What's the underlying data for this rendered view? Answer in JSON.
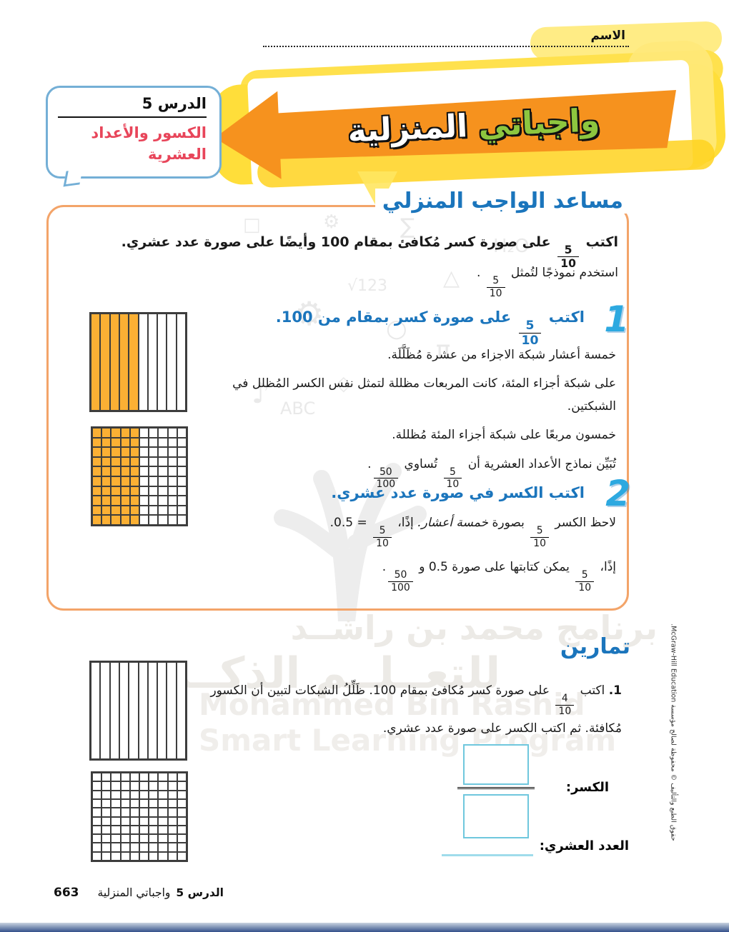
{
  "header": {
    "name_label": "الاسم"
  },
  "banner": {
    "word_green": "واجباتي",
    "word_white": "المنزلية"
  },
  "badge": {
    "lesson": "الدرس 5",
    "topic_line1": "الكسور والأعداد",
    "topic_line2": "العشرية"
  },
  "fractions": {
    "f510": {
      "num": "5",
      "den": "10"
    },
    "f50100": {
      "num": "50",
      "den": "100"
    },
    "f410": {
      "num": "4",
      "den": "10"
    }
  },
  "helper": {
    "title": "مساعد الواجب المنزلي",
    "intro_a": "اكتب",
    "intro_b": "على صورة كسر مُكافئ بمقام 100 وأيضًا على صورة عدد عشري.",
    "use_model_a": "استخدم نموذجًا لتُمثل",
    "use_model_b": ".",
    "step1": {
      "number": "1",
      "head_a": "اكتب",
      "head_b": "على صورة كسر بمقام من 100.",
      "p1": "خمسة أعشار شبكة الاجزاء من عشرة مُظَلَّلَة.",
      "p2": "على شبكة أجزاء المئة، كانت المربعات مظللة لتمثل نفس الكسر المُظلل في الشبكتين.",
      "p3": "خمسون مربعًا على شبكة أجزاء المئة مُظللة.",
      "p4_a": "تُبَيِّن نماذج الأعداد العشرية أن",
      "p4_b": "تُساوي",
      "p4_c": "."
    },
    "step2": {
      "number": "2",
      "head": "اكتب الكسر في صورة عدد عشري.",
      "p1_a": "لاحظ الكسر",
      "p1_b": "بصورة",
      "p1_italic": "خمسة أعشار.",
      "p1_c": "إذًا،",
      "p1_d": "= 0.5.",
      "p2_a": "إذًا،",
      "p2_b": "يمكن كتابتها على صورة 0.5 و",
      "p2_c": "."
    }
  },
  "exercises": {
    "title": "تمارين",
    "ex1_num": "1.",
    "ex1_a": "اكتب",
    "ex1_b": "على صورة كسر مُكافئ بمقام 100. ظَلِّلُ الشبكات لتبين أن الكسور مُكافئة. ثم اكتب الكسر على صورة عدد عشري.",
    "fraction_label": "الكسر:",
    "decimal_label": "العدد العشري:"
  },
  "grids": {
    "shade_color": "#FBB034",
    "model_tenths": {
      "rows": 1,
      "cols": 10,
      "shaded_cols": 5
    },
    "model_hundredths": {
      "rows": 10,
      "cols": 10,
      "shaded_cols": 5
    },
    "exercise_tenths": {
      "rows": 1,
      "cols": 10,
      "shaded_cols": 0
    },
    "exercise_hundredths": {
      "rows": 10,
      "cols": 10,
      "shaded_cols": 0
    }
  },
  "watermark": {
    "ar1": "برنامج محمد بن راشــد",
    "ar2": "للتعــلــم الذكــي",
    "en1": "Mohammed Bin Rashid",
    "en2": "Smart Learning Program"
  },
  "sidebar": {
    "copyright": "حقوق الطبع والتأليف © محفوظة لصالح مؤسسة McGraw-Hill Education."
  },
  "footer": {
    "lesson": "الدرس 5",
    "title": "واجباتي المنزلية",
    "page": "663"
  },
  "colors": {
    "accent_blue": "#1B75BC",
    "step_blue": "#2DA9E0",
    "arrow_orange": "#F6921E",
    "banner_yellow": "#FFDE3A",
    "badge_red": "#E8455A",
    "badge_border": "#74AFD6",
    "panel_border": "#F3A469",
    "box_cyan": "#6FC7DD",
    "grid_shade": "#FBB034"
  }
}
